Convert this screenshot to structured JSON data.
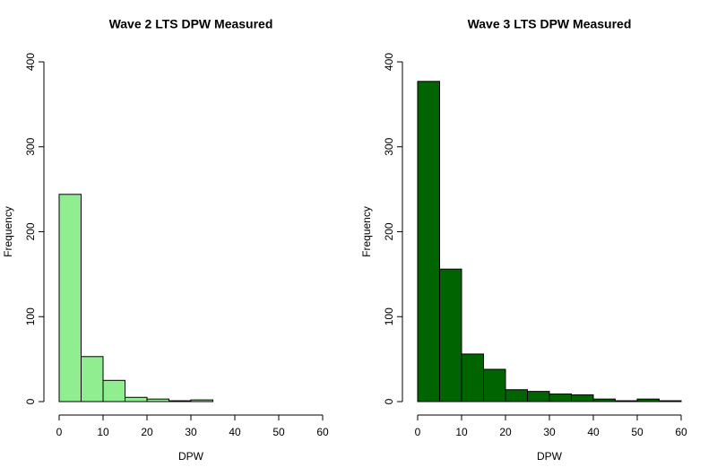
{
  "chart_data": [
    {
      "type": "histogram",
      "title": "Wave 2 LTS DPW Measured",
      "xlabel": "DPW",
      "ylabel": "Frequency",
      "bins": [
        0,
        5,
        10,
        15,
        20,
        25,
        30,
        35
      ],
      "values": [
        244,
        53,
        25,
        5,
        3,
        1,
        2
      ],
      "color": "#90ee90",
      "xlim": [
        0,
        60
      ],
      "ylim": [
        0,
        400
      ],
      "xticks": [
        0,
        10,
        20,
        30,
        40,
        50,
        60
      ],
      "yticks": [
        0,
        100,
        200,
        300,
        400
      ]
    },
    {
      "type": "histogram",
      "title": "Wave 3 LTS DPW Measured",
      "xlabel": "DPW",
      "ylabel": "Frequency",
      "bins": [
        0,
        5,
        10,
        15,
        20,
        25,
        30,
        35,
        40,
        45,
        50,
        55,
        60
      ],
      "values": [
        377,
        156,
        56,
        38,
        14,
        12,
        9,
        8,
        3,
        1,
        3,
        1
      ],
      "color": "#006400",
      "xlim": [
        0,
        60
      ],
      "ylim": [
        0,
        400
      ],
      "xticks": [
        0,
        10,
        20,
        30,
        40,
        50,
        60
      ],
      "yticks": [
        0,
        100,
        200,
        300,
        400
      ]
    }
  ]
}
